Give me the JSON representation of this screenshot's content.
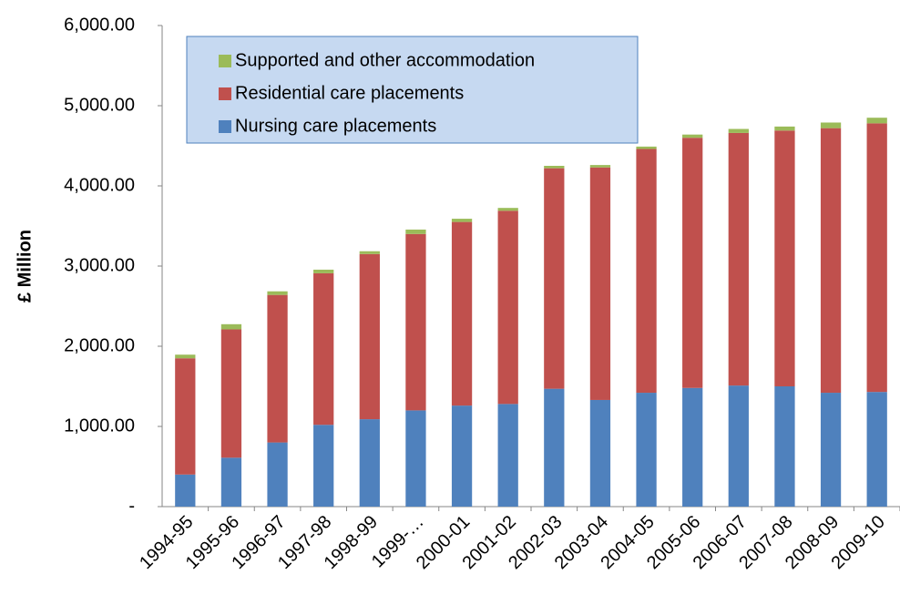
{
  "chart_data": {
    "type": "stacked_bar",
    "y_label": "£ Million",
    "categories": [
      "1994-95",
      "1995-96",
      "1996-97",
      "1997-98",
      "1998-99",
      "1999-…",
      "2000-01",
      "2001-02",
      "2002-03",
      "2003-04",
      "2004-05",
      "2005-06",
      "2006-07",
      "2007-08",
      "2008-09",
      "2009-10"
    ],
    "series": [
      {
        "name": "Nursing care placements",
        "color": "#4f81bd",
        "values": [
          400,
          610,
          800,
          1020,
          1090,
          1200,
          1260,
          1280,
          1470,
          1330,
          1420,
          1480,
          1510,
          1500,
          1420,
          1430
        ]
      },
      {
        "name": "Residential care placements",
        "color": "#c0504d",
        "values": [
          1450,
          1600,
          1840,
          1890,
          2060,
          2200,
          2290,
          2410,
          2750,
          2900,
          3040,
          3120,
          3150,
          3190,
          3300,
          3350
        ]
      },
      {
        "name": "Supported and other accommodation",
        "color": "#9bbb59",
        "values": [
          45,
          65,
          45,
          45,
          35,
          55,
          40,
          35,
          30,
          30,
          30,
          40,
          50,
          50,
          70,
          70
        ]
      }
    ],
    "ylim": [
      0,
      6000
    ],
    "yticks": [
      {
        "value": 0,
        "label": "-"
      },
      {
        "value": 1000,
        "label": "1,000.00"
      },
      {
        "value": 2000,
        "label": "2,000.00"
      },
      {
        "value": 3000,
        "label": "3,000.00"
      },
      {
        "value": 4000,
        "label": "4,000.00"
      },
      {
        "value": 5000,
        "label": "5,000.00"
      },
      {
        "value": 6000,
        "label": "6,000.00"
      }
    ],
    "grid": false,
    "legend_position": "upper left"
  }
}
